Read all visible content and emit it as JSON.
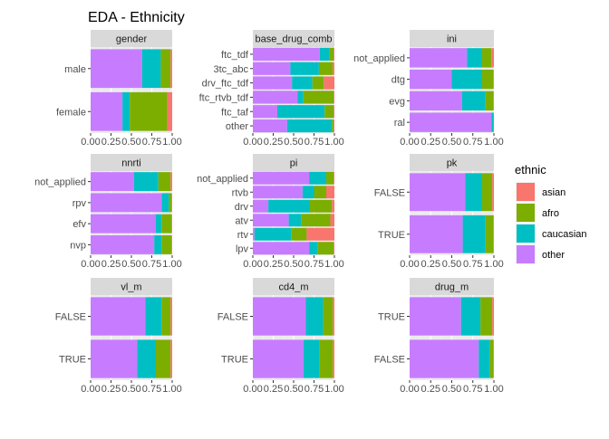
{
  "title": "EDA - Ethnicity",
  "legend": {
    "title": "ethnic",
    "position": "right",
    "items": [
      {
        "key": "asian",
        "label": "asian",
        "color": "#F8766D"
      },
      {
        "key": "afro",
        "label": "afro",
        "color": "#7CAE00"
      },
      {
        "key": "caucasian",
        "label": "caucasian",
        "color": "#00BFC4"
      },
      {
        "key": "other",
        "label": "other",
        "color": "#C77CFF"
      }
    ]
  },
  "chart_data": {
    "type": "bar",
    "orientation": "horizontal",
    "stacked": true,
    "position": "fill",
    "x_ticks": [
      "0.00",
      "0.25",
      "0.50",
      "0.75",
      "1.00"
    ],
    "xlim": [
      0,
      1
    ],
    "stack_order": [
      "other",
      "caucasian",
      "afro",
      "asian"
    ],
    "grid": true,
    "panels": [
      {
        "strip": "gender",
        "categories": [
          {
            "label": "male",
            "values": {
              "other": 0.63,
              "caucasian": 0.23,
              "afro": 0.12,
              "asian": 0.02
            }
          },
          {
            "label": "female",
            "values": {
              "other": 0.39,
              "caucasian": 0.09,
              "afro": 0.46,
              "asian": 0.06
            }
          }
        ]
      },
      {
        "strip": "base_drug_comb",
        "categories": [
          {
            "label": "ftc_tdf",
            "values": {
              "other": 0.82,
              "caucasian": 0.12,
              "afro": 0.05,
              "asian": 0.01
            }
          },
          {
            "label": "3tc_abc",
            "values": {
              "other": 0.46,
              "caucasian": 0.35,
              "afro": 0.17,
              "asian": 0.02
            }
          },
          {
            "label": "drv_ftc_tdf",
            "values": {
              "other": 0.48,
              "caucasian": 0.25,
              "afro": 0.14,
              "asian": 0.13
            }
          },
          {
            "label": "ftc_rtvb_tdf",
            "values": {
              "other": 0.55,
              "caucasian": 0.07,
              "afro": 0.37,
              "asian": 0.01
            }
          },
          {
            "label": "ftc_taf",
            "values": {
              "other": 0.3,
              "caucasian": 0.58,
              "afro": 0.11,
              "asian": 0.01
            }
          },
          {
            "label": "other",
            "values": {
              "other": 0.42,
              "caucasian": 0.55,
              "afro": 0.02,
              "asian": 0.01
            }
          }
        ]
      },
      {
        "strip": "ini",
        "categories": [
          {
            "label": "not_applied",
            "values": {
              "other": 0.68,
              "caucasian": 0.18,
              "afro": 0.11,
              "asian": 0.03
            }
          },
          {
            "label": "dtg",
            "values": {
              "other": 0.5,
              "caucasian": 0.36,
              "afro": 0.13,
              "asian": 0.01
            }
          },
          {
            "label": "evg",
            "values": {
              "other": 0.62,
              "caucasian": 0.28,
              "afro": 0.09,
              "asian": 0.01
            }
          },
          {
            "label": "ral",
            "values": {
              "other": 0.97,
              "caucasian": 0.02,
              "afro": 0.01,
              "asian": 0.0
            }
          }
        ]
      },
      {
        "strip": "nnrti",
        "categories": [
          {
            "label": "not_applied",
            "values": {
              "other": 0.53,
              "caucasian": 0.3,
              "afro": 0.15,
              "asian": 0.02
            }
          },
          {
            "label": "rpv",
            "values": {
              "other": 0.87,
              "caucasian": 0.09,
              "afro": 0.03,
              "asian": 0.01
            }
          },
          {
            "label": "efv",
            "values": {
              "other": 0.8,
              "caucasian": 0.07,
              "afro": 0.12,
              "asian": 0.01
            }
          },
          {
            "label": "nvp",
            "values": {
              "other": 0.78,
              "caucasian": 0.09,
              "afro": 0.12,
              "asian": 0.01
            }
          }
        ]
      },
      {
        "strip": "pi",
        "categories": [
          {
            "label": "not_applied",
            "values": {
              "other": 0.69,
              "caucasian": 0.21,
              "afro": 0.09,
              "asian": 0.01
            }
          },
          {
            "label": "rtvb",
            "values": {
              "other": 0.61,
              "caucasian": 0.14,
              "afro": 0.15,
              "asian": 0.1
            }
          },
          {
            "label": "drv",
            "values": {
              "other": 0.19,
              "caucasian": 0.51,
              "afro": 0.27,
              "asian": 0.03
            }
          },
          {
            "label": "atv",
            "values": {
              "other": 0.44,
              "caucasian": 0.15,
              "afro": 0.36,
              "asian": 0.05
            }
          },
          {
            "label": "rtv",
            "values": {
              "other": 0.02,
              "caucasian": 0.45,
              "afro": 0.19,
              "asian": 0.34
            }
          },
          {
            "label": "lpv",
            "values": {
              "other": 0.69,
              "caucasian": 0.1,
              "afro": 0.2,
              "asian": 0.01
            }
          }
        ]
      },
      {
        "strip": "pk",
        "categories": [
          {
            "label": "FALSE",
            "values": {
              "other": 0.66,
              "caucasian": 0.2,
              "afro": 0.12,
              "asian": 0.02
            }
          },
          {
            "label": "TRUE",
            "values": {
              "other": 0.63,
              "caucasian": 0.27,
              "afro": 0.09,
              "asian": 0.01
            }
          }
        ]
      },
      {
        "strip": "vl_m",
        "categories": [
          {
            "label": "FALSE",
            "values": {
              "other": 0.67,
              "caucasian": 0.2,
              "afro": 0.11,
              "asian": 0.02
            }
          },
          {
            "label": "TRUE",
            "values": {
              "other": 0.57,
              "caucasian": 0.23,
              "afro": 0.18,
              "asian": 0.02
            }
          }
        ]
      },
      {
        "strip": "cd4_m",
        "categories": [
          {
            "label": "FALSE",
            "values": {
              "other": 0.65,
              "caucasian": 0.21,
              "afro": 0.12,
              "asian": 0.02
            }
          },
          {
            "label": "TRUE",
            "values": {
              "other": 0.62,
              "caucasian": 0.2,
              "afro": 0.16,
              "asian": 0.02
            }
          }
        ]
      },
      {
        "strip": "drug_m",
        "categories": [
          {
            "label": "TRUE",
            "values": {
              "other": 0.61,
              "caucasian": 0.23,
              "afro": 0.14,
              "asian": 0.02
            }
          },
          {
            "label": "FALSE",
            "values": {
              "other": 0.82,
              "caucasian": 0.13,
              "afro": 0.04,
              "asian": 0.01
            }
          }
        ]
      }
    ]
  }
}
